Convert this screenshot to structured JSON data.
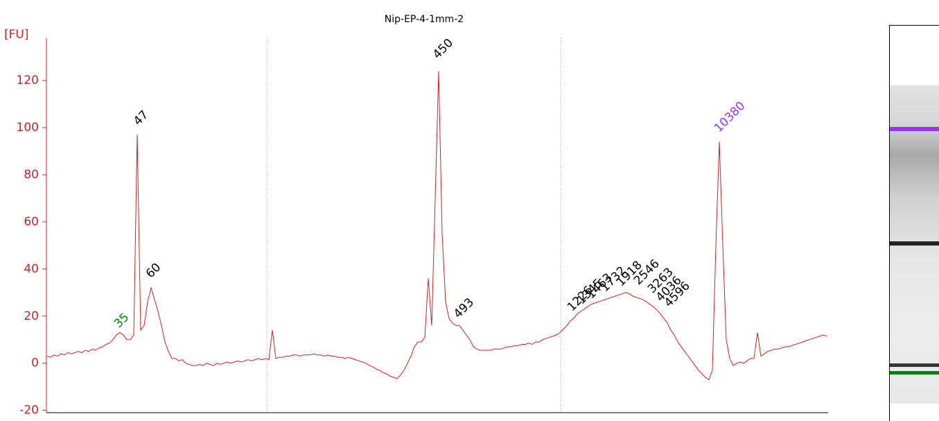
{
  "chart_data": {
    "type": "line",
    "title": "Nip-EP-4-1mm-2",
    "y_label": "[FU]",
    "color": "#cc2222",
    "ylim": [
      -21,
      138
    ],
    "yticks": [
      -20,
      0,
      20,
      40,
      60,
      80,
      100,
      120
    ],
    "values": [
      3,
      2.5,
      3.5,
      3,
      4,
      3.5,
      4.5,
      4,
      4.5,
      5,
      4.5,
      5.5,
      5,
      6,
      5.5,
      6.5,
      7,
      8,
      8.5,
      10,
      12,
      13,
      12,
      10,
      10,
      12,
      97,
      14,
      16,
      26,
      32,
      27,
      22,
      16,
      9,
      5,
      2,
      2,
      1,
      1.5,
      0,
      -0.5,
      -1,
      -1,
      -0.5,
      -1,
      0,
      -0.5,
      -1,
      0,
      -0.5,
      0,
      0.5,
      0,
      0.5,
      1,
      0.5,
      1,
      1.5,
      1,
      1.5,
      2,
      1.5,
      2,
      1.5,
      14,
      2,
      2.5,
      2.5,
      3,
      3,
      3.5,
      3.5,
      3,
      3.5,
      3.5,
      3.5,
      4,
      3.5,
      3.5,
      3,
      3.5,
      3,
      3,
      2.5,
      2.5,
      2,
      2.5,
      2,
      1.5,
      1,
      0.5,
      0,
      -1,
      -1.5,
      -2.5,
      -3,
      -4,
      -4.5,
      -5.5,
      -6,
      -6.5,
      -5,
      -3,
      0,
      3,
      7,
      9,
      9,
      11,
      36,
      16,
      70,
      124,
      55,
      26,
      19,
      17,
      16,
      16,
      14,
      12,
      10,
      7,
      6,
      5.5,
      5.5,
      5.5,
      5.5,
      6,
      6,
      6,
      6.5,
      7,
      7,
      7.5,
      7.5,
      8,
      8,
      8.5,
      8,
      9,
      9,
      10,
      10.5,
      11,
      11.5,
      12,
      13,
      14.5,
      16,
      18,
      19,
      21,
      22,
      23,
      24,
      25,
      25.5,
      26,
      26.5,
      27,
      27.5,
      28,
      28.5,
      29,
      29.5,
      30,
      29.5,
      28.5,
      28,
      27.5,
      27,
      26,
      25,
      24,
      22.5,
      21,
      19,
      17,
      14,
      12,
      9,
      7,
      5,
      3,
      1,
      -1,
      -3,
      -4.5,
      -6,
      -7,
      -3,
      50,
      94,
      50,
      10,
      2,
      -1,
      0,
      0.5,
      0,
      1,
      2,
      2,
      13,
      3,
      4,
      5,
      5.5,
      6,
      6,
      6.5,
      7,
      7,
      7.5,
      8,
      8.5,
      9,
      9.5,
      10,
      10.5,
      11,
      11.5,
      12,
      11.5
    ],
    "annotations": [
      {
        "text": "35",
        "color": "#008000"
      },
      {
        "text": "47",
        "color": "#000000"
      },
      {
        "text": "60",
        "color": "#000000"
      },
      {
        "text": "450",
        "color": "#000000"
      },
      {
        "text": "493",
        "color": "#000000"
      },
      {
        "text": "1226",
        "color": "#000000"
      },
      {
        "text": "1345",
        "color": "#000000"
      },
      {
        "text": "1463",
        "color": "#000000"
      },
      {
        "text": "1732",
        "color": "#000000"
      },
      {
        "text": "1918",
        "color": "#000000"
      },
      {
        "text": "2546",
        "color": "#000000"
      },
      {
        "text": "3263",
        "color": "#000000"
      },
      {
        "text": "4036",
        "color": "#000000"
      },
      {
        "text": "4596",
        "color": "#000000"
      },
      {
        "text": "10380",
        "color": "#9933ee"
      }
    ]
  }
}
